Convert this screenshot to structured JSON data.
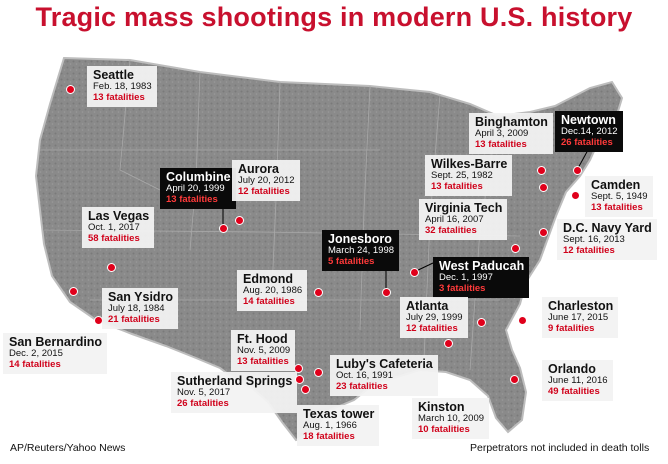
{
  "title": "Tragic mass shootings in modern U.S. history",
  "source": "AP/Reuters/Yahoo News",
  "note": "Perpetrators not included in death tolls",
  "colors": {
    "accent": "#c8102e",
    "fatality": "#d0021b",
    "map": "#8c8c8c",
    "label_bg": "#f2f2f2",
    "label_dark": "#0a0a0a"
  },
  "events": [
    {
      "name": "Seattle",
      "date": "Feb. 18, 1983",
      "fatalities": "13 fatalities",
      "style": "light"
    },
    {
      "name": "Columbine",
      "date": "April 20, 1999",
      "fatalities": "13 fatalities",
      "style": "dark"
    },
    {
      "name": "Aurora",
      "date": "July 20, 2012",
      "fatalities": "12 fatalities",
      "style": "light"
    },
    {
      "name": "Las Vegas",
      "date": "Oct. 1, 2017",
      "fatalities": "58 fatalities",
      "style": "light"
    },
    {
      "name": "San Ysidro",
      "date": "July 18, 1984",
      "fatalities": "21 fatalities",
      "style": "light"
    },
    {
      "name": "San Bernardino",
      "date": "Dec. 2, 2015",
      "fatalities": "14 fatalities",
      "style": "light"
    },
    {
      "name": "Edmond",
      "date": "Aug. 20, 1986",
      "fatalities": "14 fatalities",
      "style": "light"
    },
    {
      "name": "Jonesboro",
      "date": "March 24, 1998",
      "fatalities": "5 fatalities",
      "style": "dark"
    },
    {
      "name": "West Paducah",
      "date": "Dec. 1, 1997",
      "fatalities": "3 fatalities",
      "style": "dark"
    },
    {
      "name": "Ft. Hood",
      "date": "Nov. 5, 2009",
      "fatalities": "13 fatalities",
      "style": "light"
    },
    {
      "name": "Luby's Cafeteria",
      "date": "Oct. 16, 1991",
      "fatalities": "23 fatalities",
      "style": "light"
    },
    {
      "name": "Sutherland Springs",
      "date": "Nov. 5, 2017",
      "fatalities": "26 fatalities",
      "style": "light"
    },
    {
      "name": "Texas tower",
      "date": "Aug. 1, 1966",
      "fatalities": "18 fatalities",
      "style": "light"
    },
    {
      "name": "Kinston",
      "date": "March 10, 2009",
      "fatalities": "10 fatalities",
      "style": "light"
    },
    {
      "name": "Atlanta",
      "date": "July 29, 1999",
      "fatalities": "12 fatalities",
      "style": "light"
    },
    {
      "name": "Charleston",
      "date": "June 17, 2015",
      "fatalities": "9 fatalities",
      "style": "light"
    },
    {
      "name": "Orlando",
      "date": "June 11, 2016",
      "fatalities": "49 fatalities",
      "style": "light"
    },
    {
      "name": "Virginia Tech",
      "date": "April 16, 2007",
      "fatalities": "32 fatalities",
      "style": "light"
    },
    {
      "name": "D.C. Navy Yard",
      "date": "Sept. 16, 2013",
      "fatalities": "12 fatalities",
      "style": "light"
    },
    {
      "name": "Wilkes-Barre",
      "date": "Sept. 25, 1982",
      "fatalities": "13 fatalities",
      "style": "light"
    },
    {
      "name": "Binghamton",
      "date": "April 3, 2009",
      "fatalities": "13 fatalities",
      "style": "light"
    },
    {
      "name": "Newtown",
      "date": "Dec.14, 2012",
      "fatalities": "26 fatalities",
      "style": "dark"
    },
    {
      "name": "Camden",
      "date": "Sept. 5, 1949",
      "fatalities": "13 fatalities",
      "style": "light"
    }
  ]
}
